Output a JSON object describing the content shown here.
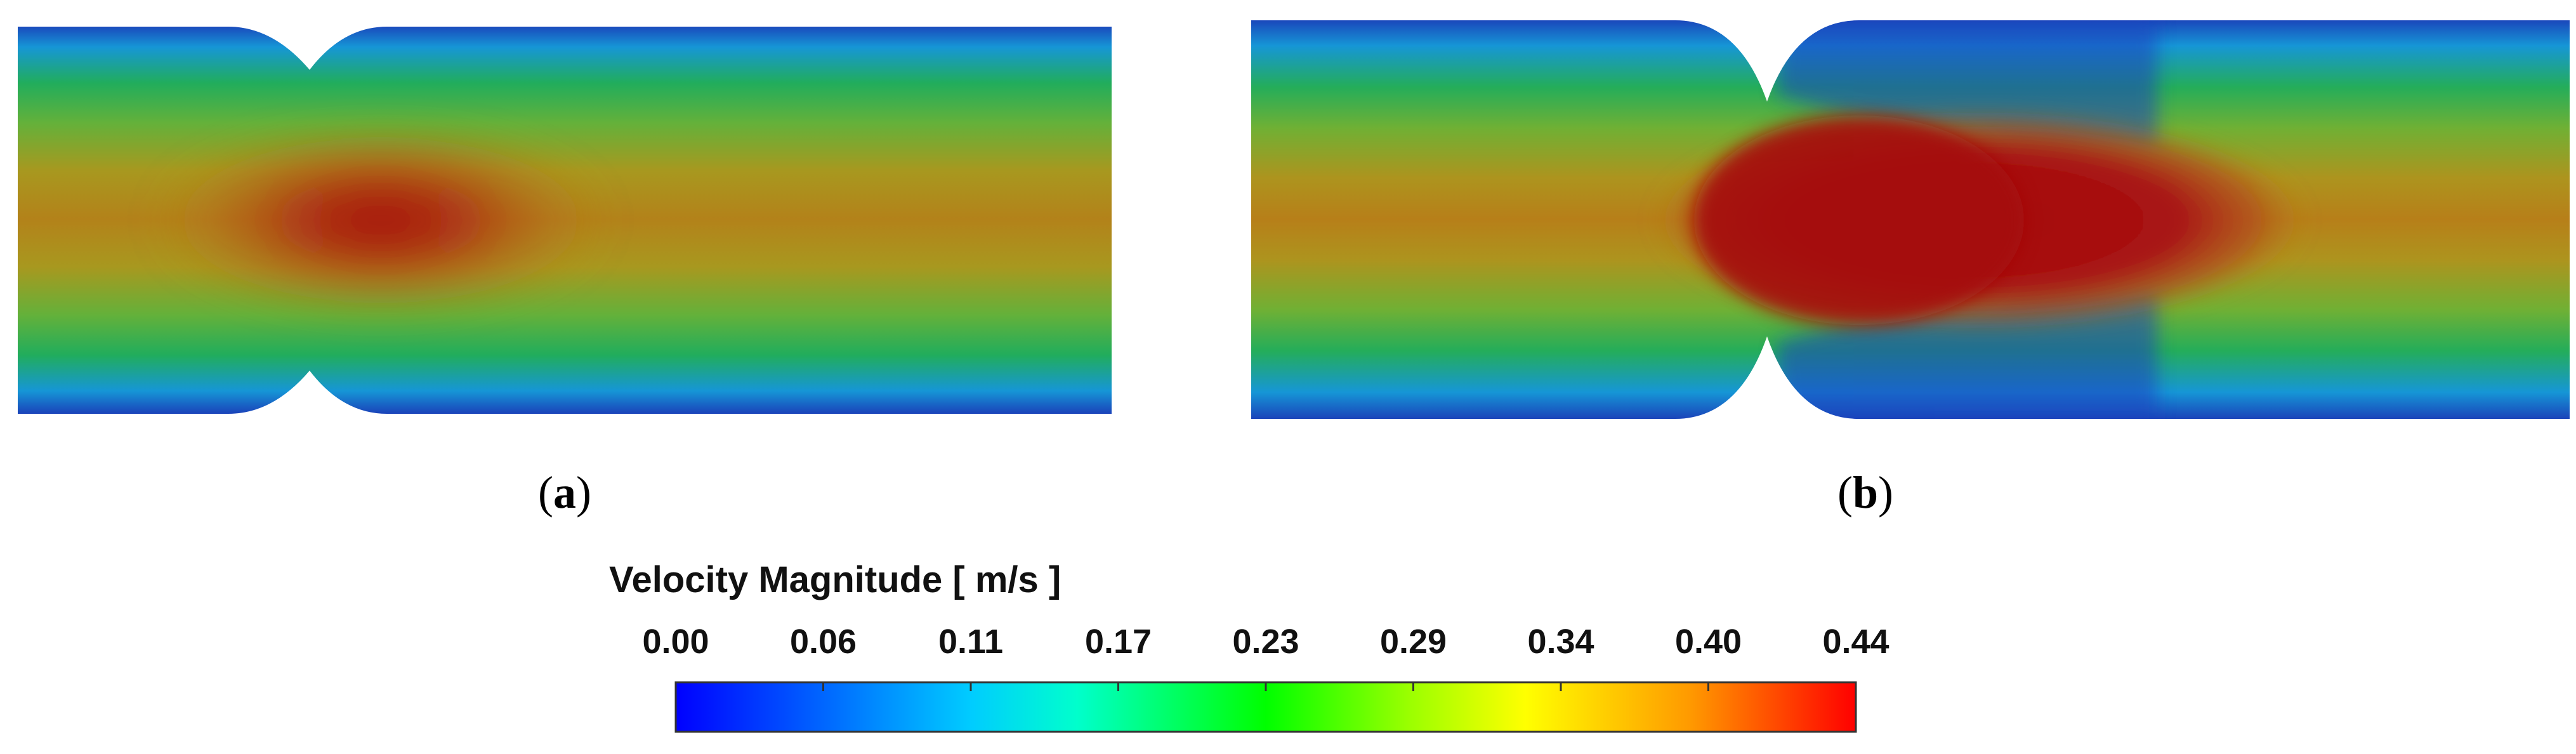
{
  "panels": [
    {
      "id": "a",
      "label_open": "(",
      "label_letter": "a",
      "label_close": ")"
    },
    {
      "id": "b",
      "label_open": "(",
      "label_letter": "b",
      "label_close": ")"
    }
  ],
  "legend": {
    "title": "Velocity Magnitude [ m/s ]",
    "ticks": [
      "0.00",
      "0.06",
      "0.11",
      "0.17",
      "0.23",
      "0.29",
      "0.34",
      "0.40",
      "0.44"
    ],
    "min": 0.0,
    "max": 0.44,
    "colormap": [
      "#0000ff",
      "#0080ff",
      "#00ffff",
      "#00ff80",
      "#00ff00",
      "#80ff00",
      "#ffff00",
      "#ff8000",
      "#ff0000"
    ]
  },
  "colors": {
    "wall": "#1c2bb0",
    "near_wall": "#1a9fd6",
    "mid": "#2fb64a",
    "core": "#b38a1a",
    "jet": "#a81010"
  }
}
